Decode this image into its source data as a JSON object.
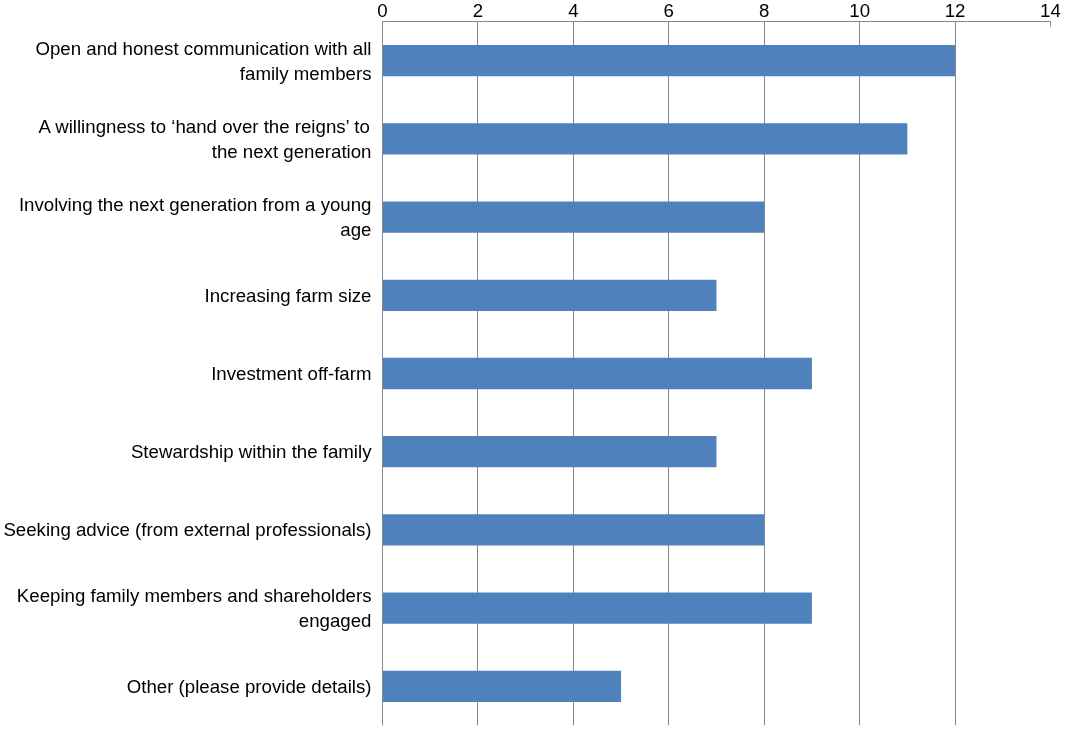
{
  "chart_data": {
    "type": "bar",
    "orientation": "horizontal",
    "categories": [
      "Open and honest communication with all family members",
      "A willingness to ‘hand over the reigns’ to the next generation",
      "Involving the next generation from a young age",
      "Increasing farm size",
      "Investment off-farm",
      "Stewardship within the family",
      "Seeking advice (from external professionals)",
      "Keeping family members and shareholders engaged",
      "Other (please provide details)"
    ],
    "values": [
      12,
      11,
      8,
      7,
      9,
      7,
      8,
      9,
      5
    ],
    "color": "#4f81bd",
    "xlim": [
      0,
      14
    ],
    "xticks": [
      0,
      2,
      4,
      6,
      8,
      10,
      12,
      14
    ],
    "grid": "x"
  }
}
